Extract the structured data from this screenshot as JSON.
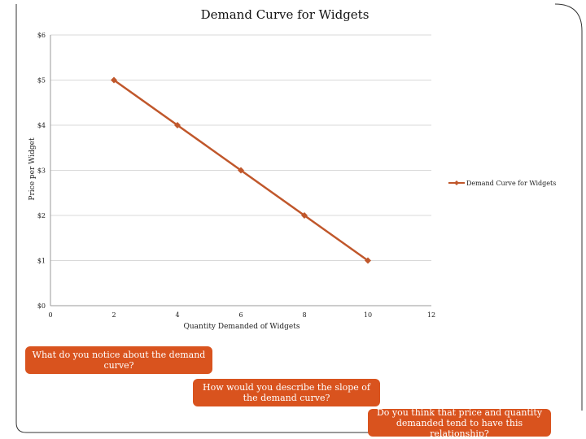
{
  "chart_data": {
    "type": "line",
    "title": "Demand Curve for Widgets",
    "xlabel": "Quantity Demanded of Widgets",
    "ylabel": "Price per Widget",
    "xlim": [
      0,
      12
    ],
    "ylim": [
      0,
      6
    ],
    "x_ticks": [
      "0",
      "2",
      "4",
      "6",
      "8",
      "10",
      "12"
    ],
    "y_ticks": [
      "$0",
      "$1",
      "$2",
      "$3",
      "$4",
      "$5",
      "$6"
    ],
    "grid": true,
    "legend_position": "right",
    "series": [
      {
        "name": "Demand Curve for Widgets",
        "color": "#c0572b",
        "x": [
          2,
          4,
          6,
          8,
          10
        ],
        "y": [
          5,
          4,
          3,
          2,
          1
        ]
      }
    ]
  },
  "callouts": {
    "q1": "What do you notice about the demand curve?",
    "q2": "How would you describe the slope of the demand curve?",
    "q3": "Do you think that price and quantity demanded tend to have this relationship?"
  },
  "colors": {
    "callout_bg": "#d9531e",
    "series_line": "#c0572b",
    "grid": "#d9d9d9"
  }
}
